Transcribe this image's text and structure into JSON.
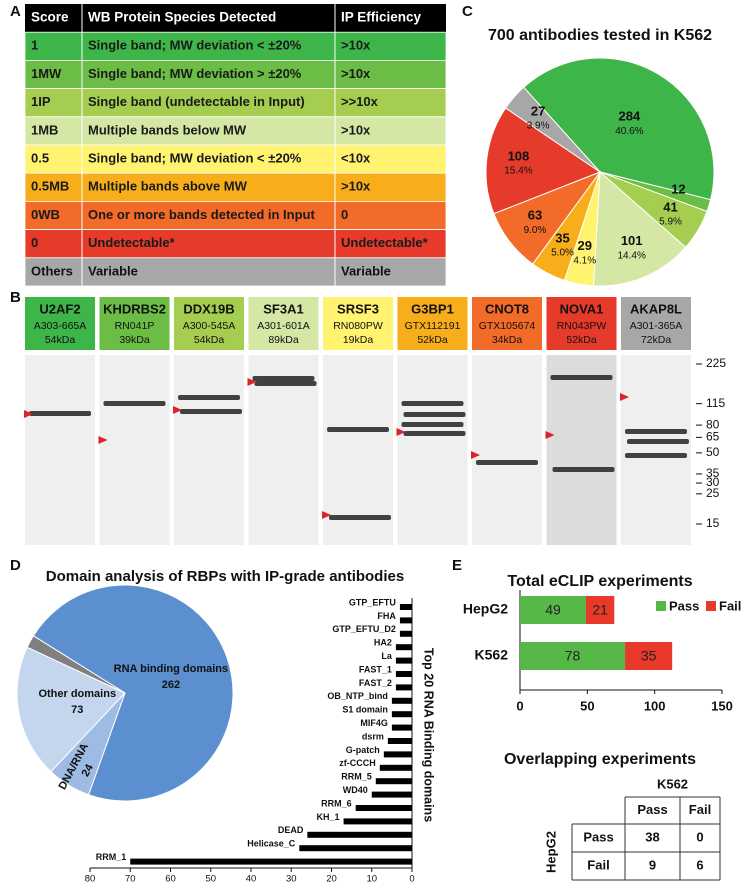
{
  "panel_labels": [
    "A",
    "B",
    "C",
    "D",
    "E"
  ],
  "score_table": {
    "header": [
      "Score",
      "WB Protein Species Detected",
      "IP Efficiency"
    ],
    "rows": [
      [
        "1",
        "Single band; MW deviation < ±20%",
        ">10x"
      ],
      [
        "1MW",
        "Single band; MW deviation > ±20%",
        ">10x"
      ],
      [
        "1IP",
        "Single band (undetectable in Input)",
        ">>10x"
      ],
      [
        "1MB",
        "Multiple bands below MW",
        ">10x"
      ],
      [
        "0.5",
        "Single band; MW deviation < ±20%",
        "<10x"
      ],
      [
        "0.5MB",
        "Multiple bands above MW",
        ">10x"
      ],
      [
        "0WB",
        "One or more bands detected in Input",
        "0"
      ],
      [
        "0",
        "Undetectable*",
        "Undetectable*"
      ],
      [
        "Others",
        "Variable",
        "Variable"
      ]
    ],
    "colors": [
      "#3db549",
      "#6cbd45",
      "#a5cd50",
      "#d5e7a4",
      "#fff370",
      "#f8ae1b",
      "#f26b28",
      "#e63a2b",
      "#a7a7a7"
    ]
  },
  "blots": {
    "lanes": [
      {
        "name": "U2AF2",
        "catalog": "A303-665A",
        "mw": "54kDa",
        "color": "#3db549"
      },
      {
        "name": "KHDRBS2",
        "catalog": "RN041P",
        "mw": "39kDa",
        "color": "#6cbd45"
      },
      {
        "name": "DDX19B",
        "catalog": "A300-545A",
        "mw": "54kDa",
        "color": "#a5cd50"
      },
      {
        "name": "SF3A1",
        "catalog": "A301-601A",
        "mw": "89kDa",
        "color": "#d5e7a4"
      },
      {
        "name": "SRSF3",
        "catalog": "RN080PW",
        "mw": "19kDa",
        "color": "#fff370"
      },
      {
        "name": "G3BP1",
        "catalog": "GTX112191",
        "mw": "52kDa",
        "color": "#f8ae1b"
      },
      {
        "name": "CNOT8",
        "catalog": "GTX105674",
        "mw": "34kDa",
        "color": "#f26b28"
      },
      {
        "name": "NOVA1",
        "catalog": "RN043PW",
        "mw": "52kDa",
        "color": "#e63a2b"
      },
      {
        "name": "AKAP8L",
        "catalog": "A301-365A",
        "mw": "72kDa",
        "color": "#a7a7a7"
      }
    ],
    "mw_ticks": [
      225,
      115,
      80,
      65,
      50,
      35,
      30,
      25,
      15
    ]
  },
  "chart_data": [
    {
      "type": "pie",
      "title": "700 antibodies tested in K562",
      "values": [
        284,
        12,
        41,
        101,
        29,
        35,
        63,
        108,
        27
      ],
      "percent_labels": [
        "40.6%",
        null,
        "5.9%",
        "14.4%",
        "4.1%",
        "5.0%",
        "9.0%",
        "15.4%",
        "3.9%"
      ],
      "colors": [
        "#3db549",
        "#6cbd45",
        "#a5cd50",
        "#d5e7a4",
        "#fff370",
        "#f8ae1b",
        "#f26b28",
        "#e63a2b",
        "#a7a7a7"
      ]
    },
    {
      "type": "pie",
      "title": "Domain analysis of RBPs with IP-grade antibodies",
      "categories": [
        "RNA binding domains",
        "DNA/RNA",
        "Other domains",
        null
      ],
      "values": [
        262,
        24,
        73,
        7
      ],
      "colors": [
        "#5b8fd0",
        "#9dbbe3",
        "#c4d6ee",
        "#808080"
      ]
    },
    {
      "type": "hbar",
      "y_label": "Top 20 RNA Binding domains",
      "categories": [
        "GTP_EFTU",
        "FHA",
        "GTP_EFTU_D2",
        "HA2",
        "La",
        "FAST_1",
        "FAST_2",
        "OB_NTP_bind",
        "S1 domain",
        "MIF4G",
        "dsrm",
        "G-patch",
        "zf-CCCH",
        "RRM_5",
        "WD40",
        "RRM_6",
        "KH_1",
        "DEAD",
        "Helicase_C",
        "RRM_1"
      ],
      "values": [
        3,
        3,
        3,
        4,
        4,
        4,
        4,
        5,
        5,
        5,
        6,
        7,
        8,
        9,
        10,
        14,
        17,
        26,
        28,
        70
      ],
      "xlim": [
        80,
        0
      ],
      "xticks": [
        80,
        70,
        60,
        50,
        40,
        30,
        20,
        10,
        0
      ],
      "color": "#000000"
    },
    {
      "type": "stacked_hbar",
      "title": "Total eCLIP experiments",
      "categories": [
        "HepG2",
        "K562"
      ],
      "series": [
        {
          "name": "Pass",
          "color": "#55b847",
          "values": [
            49,
            78
          ]
        },
        {
          "name": "Fail",
          "color": "#e8392a",
          "values": [
            21,
            35
          ]
        }
      ],
      "xlim": [
        0,
        150
      ],
      "xticks": [
        0,
        50,
        100,
        150
      ],
      "legend": "top-right"
    }
  ],
  "overlap_table": {
    "title": "Overlapping experiments",
    "col_header": "K562",
    "row_header": "HepG2",
    "columns": [
      "Pass",
      "Fail"
    ],
    "rows": [
      {
        "label": "Pass",
        "values": [
          38,
          0
        ]
      },
      {
        "label": "Fail",
        "values": [
          9,
          6
        ]
      }
    ]
  }
}
